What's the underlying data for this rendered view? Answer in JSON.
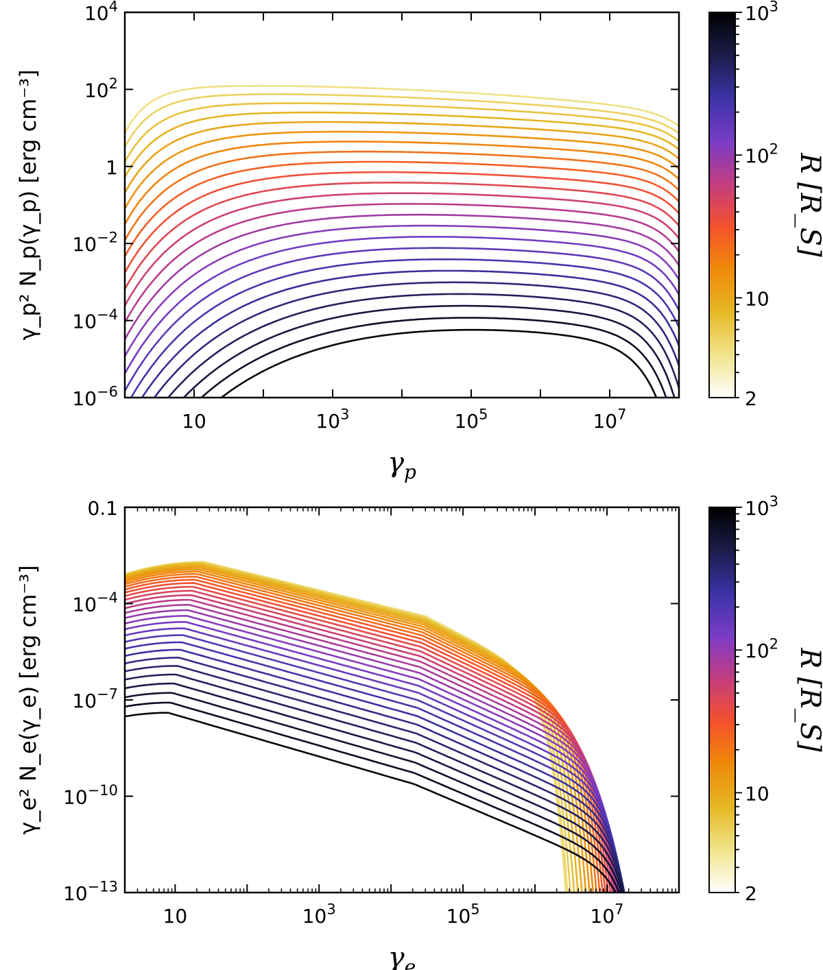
{
  "chart_data": [
    {
      "type": "line",
      "panel": "top",
      "xlabel": "γ_p",
      "ylabel": "γ_p² N_p(γ_p)  [erg cm⁻³]",
      "xscale": "log",
      "yscale": "log",
      "xlim": [
        1,
        100000000.0
      ],
      "ylim": [
        1e-06,
        10000.0
      ],
      "xticks": [
        {
          "value": 10,
          "label": "10"
        },
        {
          "value": 1000,
          "base": "10",
          "exp": "3"
        },
        {
          "value": 100000,
          "base": "10",
          "exp": "5"
        },
        {
          "value": 10000000,
          "base": "10",
          "exp": "7"
        }
      ],
      "yticks": [
        {
          "value": 1e-06,
          "base": "10",
          "exp": "−6"
        },
        {
          "value": 0.0001,
          "base": "10",
          "exp": "−4"
        },
        {
          "value": 0.01,
          "base": "10",
          "exp": "−2"
        },
        {
          "value": 1,
          "label": "1"
        },
        {
          "value": 100,
          "base": "10",
          "exp": "2"
        },
        {
          "value": 10000,
          "base": "10",
          "exp": "4"
        }
      ],
      "series_count": 24,
      "series_R_range": [
        2,
        1000
      ],
      "sample_series": [
        {
          "name": "R ≈ 1000",
          "x": [
            1,
            1.5,
            3,
            10,
            100,
            1000,
            8000,
            100000.0,
            1000000.0,
            10000000.0,
            20000000.0
          ],
          "y": [
            1e-06,
            3e-06,
            1.2e-05,
            4e-05,
            9e-05,
            0.00016,
            0.00019,
            0.00015,
            5e-05,
            3e-06,
            1e-06
          ]
        },
        {
          "name": "R ≈ 2",
          "x": [
            1,
            1.5,
            3,
            10,
            100,
            1000,
            100000.0,
            1000000.0,
            5000000.0,
            10000000.0,
            20000000.0,
            50000000.0
          ],
          "y": [
            20,
            40,
            100,
            150,
            170,
            165,
            140,
            100,
            50,
            20,
            0.5,
            1e-06
          ]
        }
      ],
      "colorbar": {
        "label": "R  [R_S]",
        "range": [
          2,
          1000
        ],
        "scale": "log",
        "ticks": [
          {
            "value": 2,
            "label": "2"
          },
          {
            "value": 10,
            "label": "10"
          },
          {
            "value": 100,
            "base": "10",
            "exp": "2"
          },
          {
            "value": 1000,
            "base": "10",
            "exp": "3"
          }
        ],
        "colormap": "CMRmap",
        "colors": [
          "#000000",
          "#1c1c4b",
          "#3b33a6",
          "#7a3cc8",
          "#c23c80",
          "#f5512c",
          "#ef8a08",
          "#e5b824",
          "#f1e38a",
          "#ffffff"
        ]
      }
    },
    {
      "type": "line",
      "panel": "bottom",
      "xlabel": "γ_e",
      "ylabel": "γ_e² N_e(γ_e)  [erg cm⁻³]",
      "xscale": "log",
      "yscale": "log",
      "xlim": [
        2,
        100000000.0
      ],
      "ylim": [
        1e-13,
        0.1
      ],
      "xticks": [
        {
          "value": 10,
          "label": "10"
        },
        {
          "value": 1000,
          "base": "10",
          "exp": "3"
        },
        {
          "value": 100000,
          "base": "10",
          "exp": "5"
        },
        {
          "value": 10000000,
          "base": "10",
          "exp": "7"
        }
      ],
      "yticks": [
        {
          "value": 1e-13,
          "base": "10",
          "exp": "−13"
        },
        {
          "value": 1e-10,
          "base": "10",
          "exp": "−10"
        },
        {
          "value": 1e-07,
          "base": "10",
          "exp": "−7"
        },
        {
          "value": 0.0001,
          "base": "10",
          "exp": "−4"
        },
        {
          "value": 0.1,
          "label": "0.1"
        }
      ],
      "series_count": 32,
      "series_R_range": [
        2,
        1000
      ],
      "sample_series": [
        {
          "name": "R ≈ 1000",
          "x": [
            2,
            8,
            100,
            10000.0,
            100000.0,
            1000000.0,
            5000000.0,
            10000000.0
          ],
          "y": [
            1e-08,
            2.5e-08,
            2e-09,
            1e-10,
            2e-11,
            3e-12,
            1e-13,
            1e-14
          ]
        },
        {
          "name": "R ≈ 2",
          "x": [
            2,
            30,
            1000,
            50000.0,
            300000.0,
            500000.0
          ],
          "y": [
            0.0015,
            0.002,
            0.0002,
            8e-06,
            1e-08,
            1e-13
          ]
        }
      ],
      "colorbar": {
        "label": "R  [R_S]",
        "range": [
          2,
          1000
        ],
        "scale": "log",
        "ticks": [
          {
            "value": 2,
            "label": "2"
          },
          {
            "value": 10,
            "label": "10"
          },
          {
            "value": 100,
            "base": "10",
            "exp": "2"
          },
          {
            "value": 1000,
            "base": "10",
            "exp": "3"
          }
        ],
        "colormap": "CMRmap",
        "colors": [
          "#000000",
          "#1c1c4b",
          "#3b33a6",
          "#7a3cc8",
          "#c23c80",
          "#f5512c",
          "#ef8a08",
          "#e5b824",
          "#f1e38a",
          "#ffffff"
        ]
      }
    }
  ]
}
